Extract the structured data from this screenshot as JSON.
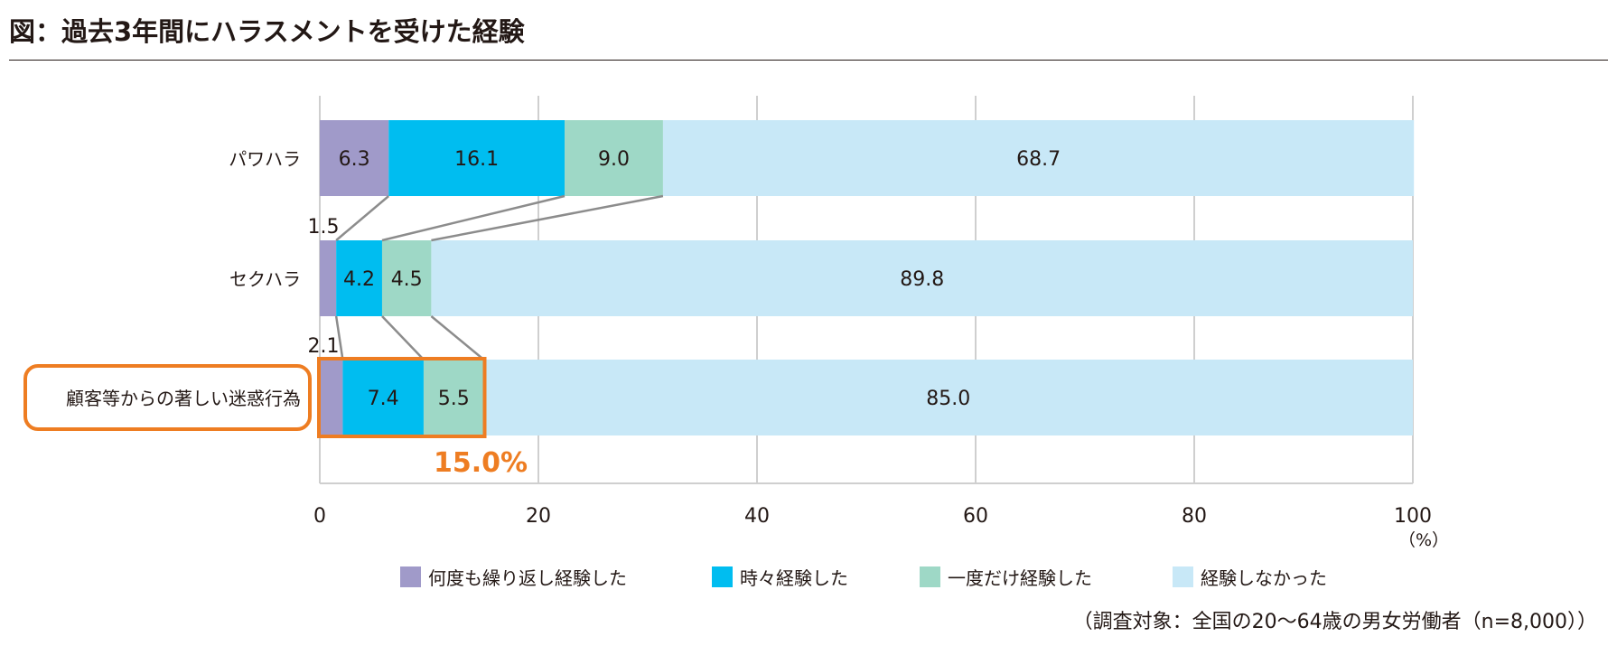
{
  "title": "図：過去3年間にハラスメントを受けた経験",
  "colors": {
    "frequent": "#a09ac9",
    "sometimes": "#00bdf0",
    "once": "#9ed8c6",
    "never": "#c8e8f7",
    "highlight": "#ee7d22",
    "connector": "#8c8c8c",
    "grid": "#cfcfcf"
  },
  "chart_data": {
    "type": "bar",
    "orientation": "horizontal",
    "stacked": true,
    "categories": [
      "パワハラ",
      "セクハラ",
      "顧客等からの著しい迷惑行為"
    ],
    "series": [
      {
        "name": "何度も繰り返し経験した",
        "values": [
          6.3,
          1.5,
          2.1
        ]
      },
      {
        "name": "時々経験した",
        "values": [
          16.1,
          4.2,
          7.4
        ]
      },
      {
        "name": "一度だけ経験した",
        "values": [
          9.0,
          4.5,
          5.5
        ]
      },
      {
        "name": "経験しなかった",
        "values": [
          68.7,
          89.8,
          85.0
        ]
      }
    ],
    "value_labels": [
      [
        "6.3",
        "16.1",
        "9.0",
        "68.7"
      ],
      [
        "1.5",
        "4.2",
        "4.5",
        "89.8"
      ],
      [
        "2.1",
        "7.4",
        "5.5",
        "85.0"
      ]
    ],
    "xlim": [
      0,
      100
    ],
    "xticks": [
      "0",
      "20",
      "40",
      "60",
      "80",
      "100"
    ],
    "xunit": "（%）",
    "grid": true,
    "legend_position": "bottom",
    "highlight": {
      "category": "顧客等からの著しい迷惑行為",
      "total_label": "15.0%"
    }
  },
  "legend": [
    {
      "label": "何度も繰り返し経験した",
      "color": "#a09ac9"
    },
    {
      "label": "時々経験した",
      "color": "#00bdf0"
    },
    {
      "label": "一度だけ経験した",
      "color": "#9ed8c6"
    },
    {
      "label": "経験しなかった",
      "color": "#c8e8f7"
    }
  ],
  "note": "（調査対象：全国の20〜64歳の男女労働者（n=8,000））"
}
